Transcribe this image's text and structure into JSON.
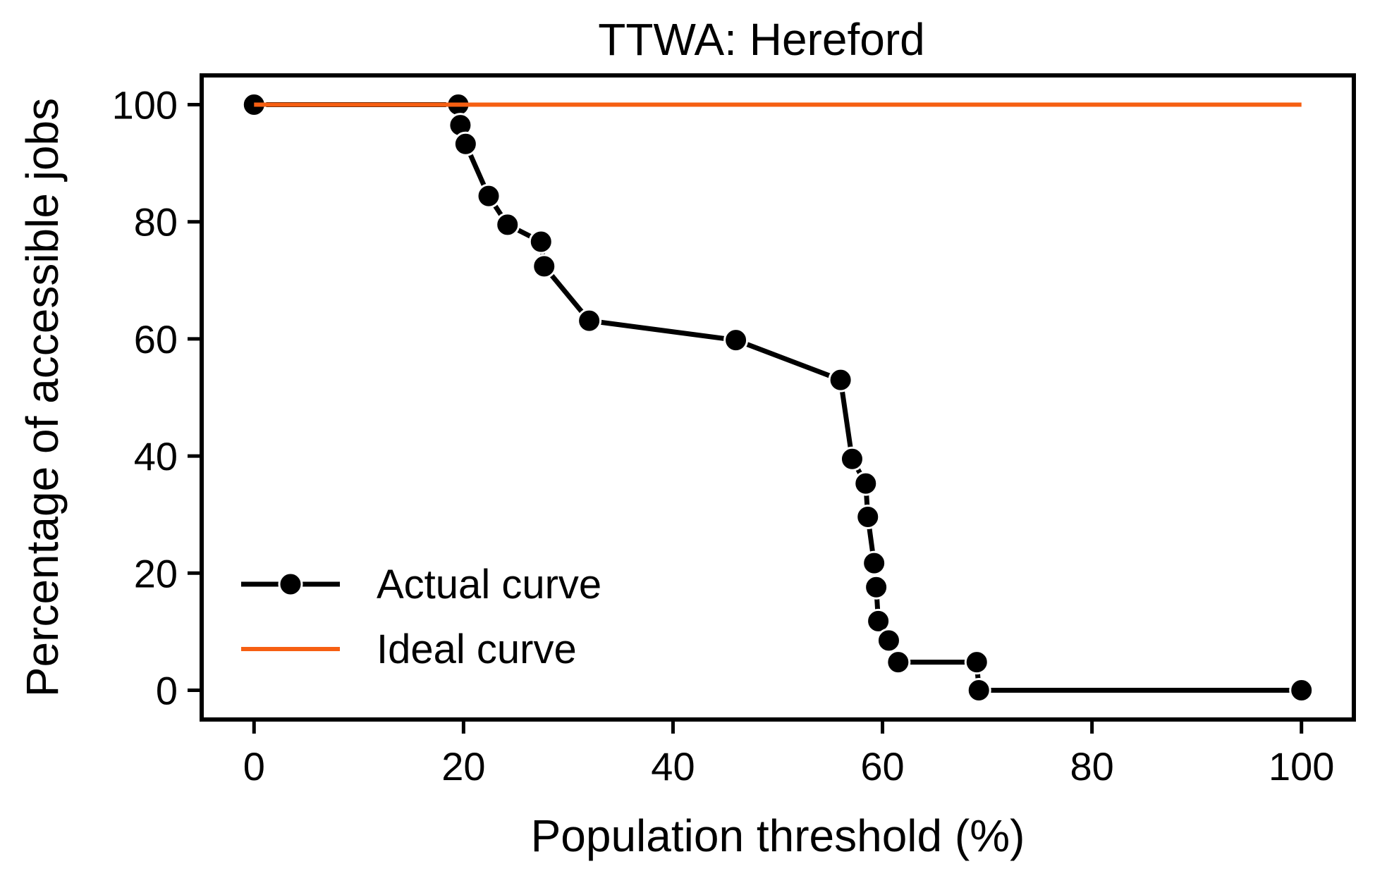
{
  "chart_data": {
    "type": "line",
    "title": "TTWA: Hereford",
    "xlabel": "Population threshold (%)",
    "ylabel": "Percentage of accessible jobs",
    "xlim": [
      -5,
      105
    ],
    "ylim": [
      -5,
      105
    ],
    "xticks": [
      0,
      20,
      40,
      60,
      80,
      100
    ],
    "yticks": [
      0,
      20,
      40,
      60,
      80,
      100
    ],
    "grid": false,
    "legend_position": "lower-left",
    "series": [
      {
        "name": "Actual curve",
        "color": "#000000",
        "marker": "circle",
        "x": [
          0,
          19.5,
          19.7,
          20.2,
          22.4,
          24.2,
          27.4,
          27.7,
          32.0,
          46.0,
          56.0,
          57.1,
          58.4,
          58.6,
          59.2,
          59.4,
          59.6,
          60.6,
          61.5,
          69.0,
          69.2,
          100
        ],
        "y": [
          100,
          100,
          96.5,
          93.3,
          84.4,
          79.5,
          76.6,
          72.4,
          63.1,
          59.8,
          53.0,
          39.5,
          35.3,
          29.6,
          21.7,
          17.6,
          11.8,
          8.5,
          4.8,
          4.8,
          0,
          0
        ]
      },
      {
        "name": "Ideal curve",
        "color": "#f65f12",
        "marker": "none",
        "x": [
          0,
          100
        ],
        "y": [
          100,
          100
        ]
      }
    ]
  }
}
